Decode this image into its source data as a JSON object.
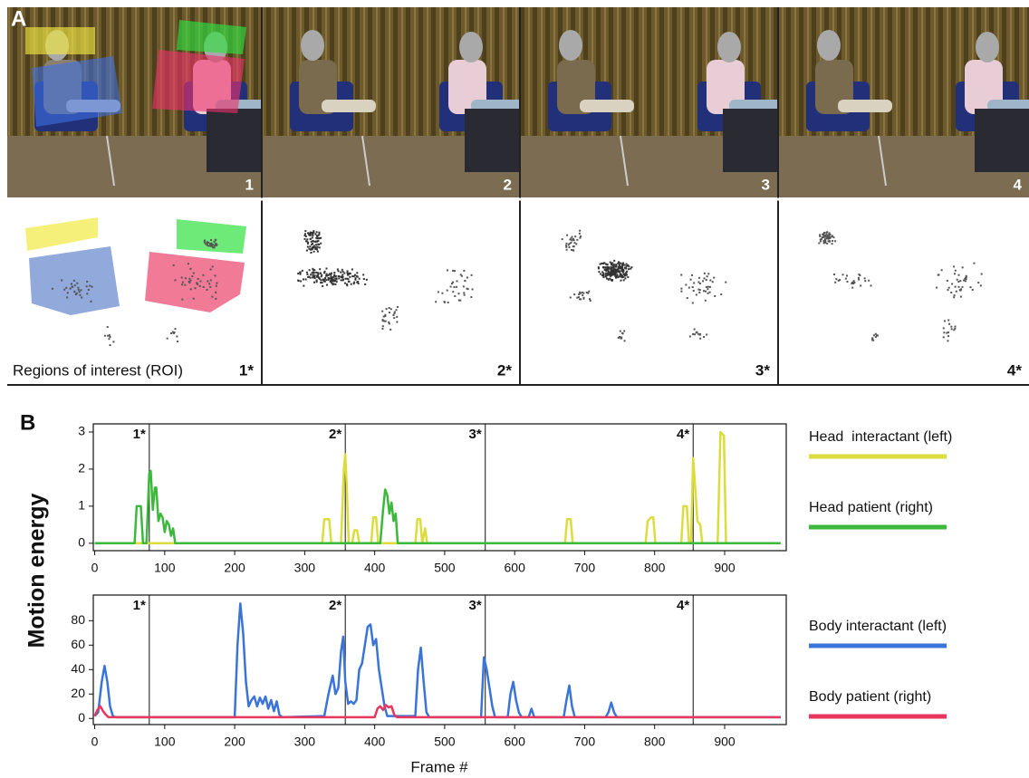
{
  "figure": {
    "panel_a": {
      "label": "A",
      "photo_labels": [
        "1",
        "2",
        "3",
        "4"
      ],
      "roi_caption": "Regions of interest (ROI)",
      "scatter_labels": [
        "1*",
        "2*",
        "3*",
        "4*"
      ]
    },
    "panel_b": {
      "label": "B",
      "y_axis_title": "Motion energy",
      "x_axis_title": "Frame #"
    }
  },
  "chart_data": [
    {
      "type": "line",
      "xlim": [
        -2,
        988
      ],
      "ylim": [
        -0.2,
        3.22
      ],
      "xticks": [
        0,
        100,
        200,
        300,
        400,
        500,
        600,
        700,
        800,
        900
      ],
      "yticks": [
        0,
        1,
        2,
        3
      ],
      "legend": "right",
      "markers": [
        {
          "x": 78,
          "label": "1*"
        },
        {
          "x": 358,
          "label": "2*"
        },
        {
          "x": 558,
          "label": "3*"
        },
        {
          "x": 855,
          "label": "4*"
        }
      ],
      "series": [
        {
          "name": "Head  interactant (left)",
          "color": "#dcdc3c",
          "x": [
            0,
            325,
            328,
            335,
            338,
            352,
            356,
            358,
            360,
            363,
            368,
            371,
            375,
            378,
            395,
            398,
            402,
            405,
            458,
            461,
            465,
            468,
            472,
            475,
            672,
            675,
            680,
            683,
            787,
            790,
            795,
            798,
            801,
            838,
            841,
            846,
            849,
            852,
            855,
            858,
            861,
            865,
            868,
            871,
            890,
            894,
            899,
            902,
            980
          ],
          "values": [
            0,
            0,
            0.65,
            0.65,
            0,
            0,
            2.0,
            2.4,
            1.6,
            0,
            0,
            0.35,
            0.35,
            0,
            0,
            0.7,
            0.7,
            0,
            0,
            0.65,
            0.65,
            0,
            0.4,
            0,
            0,
            0.65,
            0.65,
            0,
            0,
            0.6,
            0.7,
            0.7,
            0,
            0,
            1.0,
            1.0,
            0,
            0,
            2.3,
            1.5,
            0.6,
            0.5,
            0,
            0,
            0,
            3.0,
            2.9,
            0,
            0
          ]
        },
        {
          "name": "Head patient (right)",
          "color": "#3cb83c",
          "x": [
            0,
            57,
            60,
            66,
            69,
            74,
            78,
            80,
            83,
            86,
            88,
            91,
            94,
            97,
            100,
            103,
            106,
            109,
            112,
            115,
            408,
            412,
            415,
            418,
            421,
            424,
            427,
            430,
            433,
            980
          ],
          "values": [
            0,
            0,
            1,
            1,
            0,
            0,
            1.9,
            1.95,
            0.9,
            1.5,
            1.5,
            0.6,
            0.8,
            0.7,
            0.3,
            0.6,
            0.5,
            0.2,
            0.4,
            0,
            0,
            0.9,
            1.45,
            1.3,
            0.8,
            1.1,
            0.6,
            0.8,
            0,
            0
          ]
        }
      ]
    },
    {
      "type": "line",
      "xlim": [
        -2,
        988
      ],
      "ylim": [
        -5,
        101
      ],
      "xticks": [
        0,
        100,
        200,
        300,
        400,
        500,
        600,
        700,
        800,
        900
      ],
      "yticks": [
        0,
        20,
        40,
        60,
        80
      ],
      "legend": "right",
      "markers": [
        {
          "x": 78,
          "label": "1*"
        },
        {
          "x": 358,
          "label": "2*"
        },
        {
          "x": 558,
          "label": "3*"
        },
        {
          "x": 855,
          "label": "4*"
        }
      ],
      "series": [
        {
          "name": "Body interactant (left)",
          "color": "#3a74d8",
          "x": [
            0,
            5,
            10,
            14,
            18,
            22,
            26,
            30,
            200,
            204,
            208,
            212,
            216,
            220,
            224,
            228,
            232,
            236,
            240,
            244,
            248,
            252,
            256,
            260,
            264,
            268,
            328,
            334,
            340,
            344,
            348,
            352,
            355,
            358,
            362,
            366,
            370,
            374,
            378,
            382,
            386,
            390,
            394,
            398,
            402,
            406,
            410,
            414,
            418,
            458,
            462,
            466,
            470,
            474,
            478,
            552,
            556,
            560,
            564,
            568,
            572,
            590,
            594,
            598,
            602,
            606,
            610,
            620,
            624,
            628,
            670,
            674,
            678,
            682,
            686,
            730,
            734,
            738,
            742,
            746,
            980
          ],
          "values": [
            2,
            5,
            30,
            43,
            30,
            10,
            2,
            1,
            1,
            60,
            94,
            70,
            30,
            10,
            15,
            18,
            10,
            17,
            12,
            18,
            8,
            15,
            6,
            14,
            3,
            1,
            2,
            20,
            35,
            20,
            25,
            55,
            67,
            30,
            12,
            14,
            12,
            15,
            40,
            45,
            60,
            75,
            77,
            60,
            65,
            40,
            25,
            10,
            2,
            2,
            40,
            58,
            30,
            5,
            1,
            1,
            50,
            40,
            25,
            10,
            1,
            1,
            20,
            30,
            15,
            5,
            1,
            1,
            8,
            1,
            1,
            15,
            27,
            10,
            1,
            1,
            5,
            13,
            5,
            1,
            1
          ]
        },
        {
          "name": "Body patient (right)",
          "color": "#e8365e",
          "x": [
            0,
            4,
            8,
            12,
            16,
            20,
            400,
            404,
            408,
            412,
            416,
            420,
            424,
            428,
            432,
            980
          ],
          "values": [
            2,
            7,
            10,
            6,
            3,
            1,
            1,
            8,
            10,
            7,
            11,
            9,
            10,
            3,
            1,
            1
          ]
        }
      ]
    }
  ]
}
